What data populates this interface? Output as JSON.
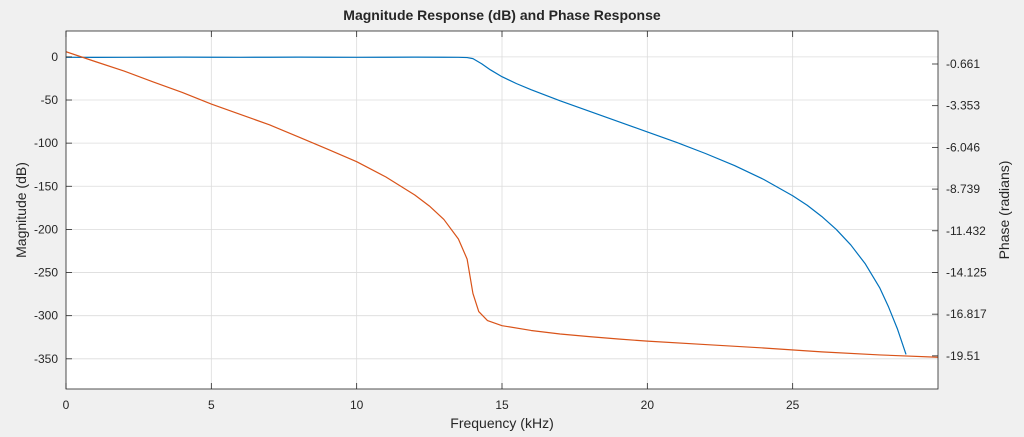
{
  "chart_data": {
    "type": "line",
    "title": "Magnitude Response (dB) and Phase Response",
    "xlabel": "Frequency (kHz)",
    "ylabel_left": "Magnitude (dB)",
    "ylabel_right": "Phase (radians)",
    "xlim": [
      0,
      30
    ],
    "ylim_left": [
      -385,
      30
    ],
    "ylim_right": [
      -21.65,
      1.47
    ],
    "grid": true,
    "legend": "none",
    "x_ticks": [
      "0",
      "5",
      "10",
      "15",
      "20",
      "25"
    ],
    "x_tick_values": [
      0,
      5,
      10,
      15,
      20,
      25
    ],
    "y_left_ticks": [
      "0",
      "-50",
      "-100",
      "-150",
      "-200",
      "-250",
      "-300",
      "-350"
    ],
    "y_left_tick_values": [
      0,
      -50,
      -100,
      -150,
      -200,
      -250,
      -300,
      -350
    ],
    "y_right_ticks": [
      "-0.661",
      "-3.353",
      "-6.046",
      "-8.739",
      "-11.432",
      "-14.125",
      "-16.817",
      "-19.51"
    ],
    "y_right_tick_values": [
      -0.661,
      -3.353,
      -6.046,
      -8.739,
      -11.432,
      -14.125,
      -16.817,
      -19.51
    ],
    "series": [
      {
        "axis": "left",
        "color": "#0072BD",
        "x": [
          0,
          1,
          2,
          3,
          4,
          5,
          6,
          7,
          8,
          9,
          10,
          11,
          12,
          13,
          13.5,
          13.8,
          14,
          14.3,
          14.6,
          15,
          15.5,
          16,
          17,
          18,
          19,
          20,
          21,
          22,
          23,
          24,
          25,
          25.5,
          26,
          26.5,
          27,
          27.5,
          28,
          28.3,
          28.6,
          28.9
        ],
        "y": [
          -0.5,
          -0.6,
          -0.5,
          -0.4,
          -0.3,
          -0.4,
          -0.5,
          -0.4,
          -0.3,
          -0.4,
          -0.5,
          -0.4,
          -0.3,
          -0.4,
          -0.5,
          -0.8,
          -2,
          -8,
          -15,
          -23,
          -31,
          -38,
          -51,
          -63,
          -75,
          -87,
          -99,
          -112,
          -126,
          -142,
          -161,
          -172,
          -185,
          -200,
          -218,
          -240,
          -268,
          -290,
          -315,
          -345
        ]
      },
      {
        "axis": "right",
        "color": "#D95319",
        "x": [
          0,
          1,
          2,
          3,
          4,
          5,
          6,
          7,
          8,
          9,
          10,
          11,
          12,
          12.5,
          13,
          13.5,
          13.8,
          14,
          14.2,
          14.5,
          15,
          16,
          17,
          18,
          19,
          20,
          22,
          24,
          26,
          28,
          30
        ],
        "y": [
          0.13,
          -0.5,
          -1.12,
          -1.82,
          -2.5,
          -3.25,
          -3.92,
          -4.59,
          -5.37,
          -6.16,
          -6.97,
          -7.95,
          -9.12,
          -9.83,
          -10.7,
          -11.96,
          -13.26,
          -15.48,
          -16.65,
          -17.23,
          -17.56,
          -17.87,
          -18.1,
          -18.27,
          -18.42,
          -18.56,
          -18.78,
          -19.0,
          -19.25,
          -19.45,
          -19.6
        ]
      }
    ]
  }
}
